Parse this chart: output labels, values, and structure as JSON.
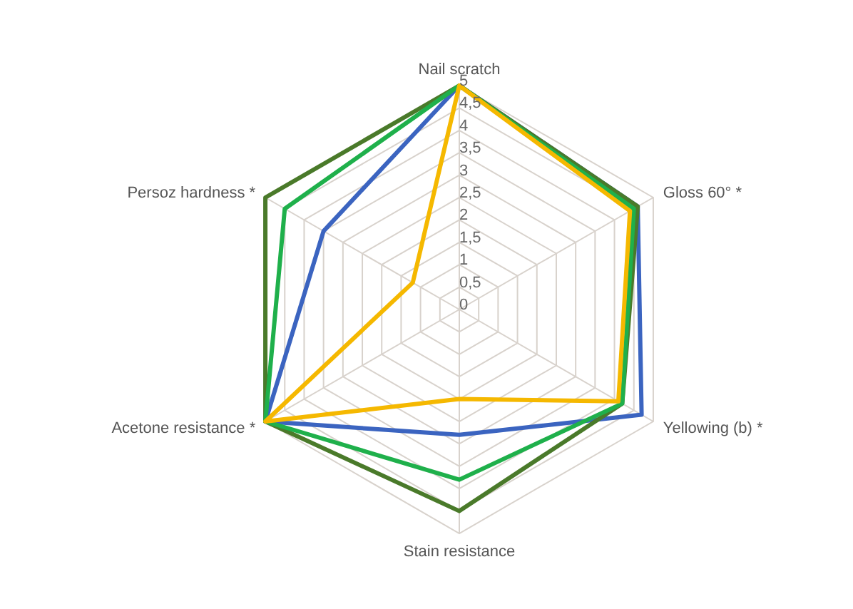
{
  "chart_data": {
    "type": "radar",
    "categories": [
      "Nail scratch",
      "Gloss 60° *",
      "Yellowing (b) *",
      "Stain resistance",
      "Acetone resistance *",
      "Persoz hardness *"
    ],
    "series": [
      {
        "color": "#3b64c0",
        "values": [
          5,
          4.6,
          4.7,
          2.8,
          5,
          3.5
        ]
      },
      {
        "color": "#4a7a2a",
        "values": [
          5,
          4.6,
          4.2,
          4.5,
          5,
          5
        ]
      },
      {
        "color": "#1fb04b",
        "values": [
          5,
          4.5,
          4.2,
          3.8,
          5,
          4.5
        ]
      },
      {
        "color": "#f5b800",
        "values": [
          5,
          4.4,
          4.1,
          2,
          5,
          1.2
        ]
      }
    ],
    "ylim": [
      0,
      5
    ],
    "yticks": [
      0,
      {
        "value": 0.5,
        "label": "0,5"
      },
      1,
      {
        "value": 1.5,
        "label": "1,5"
      },
      2,
      {
        "value": 2.5,
        "label": "2,5"
      },
      3,
      {
        "value": 3.5,
        "label": "3,5"
      },
      4,
      {
        "value": 4.5,
        "label": "4,5"
      },
      5
    ],
    "grid": true,
    "legend": false
  }
}
